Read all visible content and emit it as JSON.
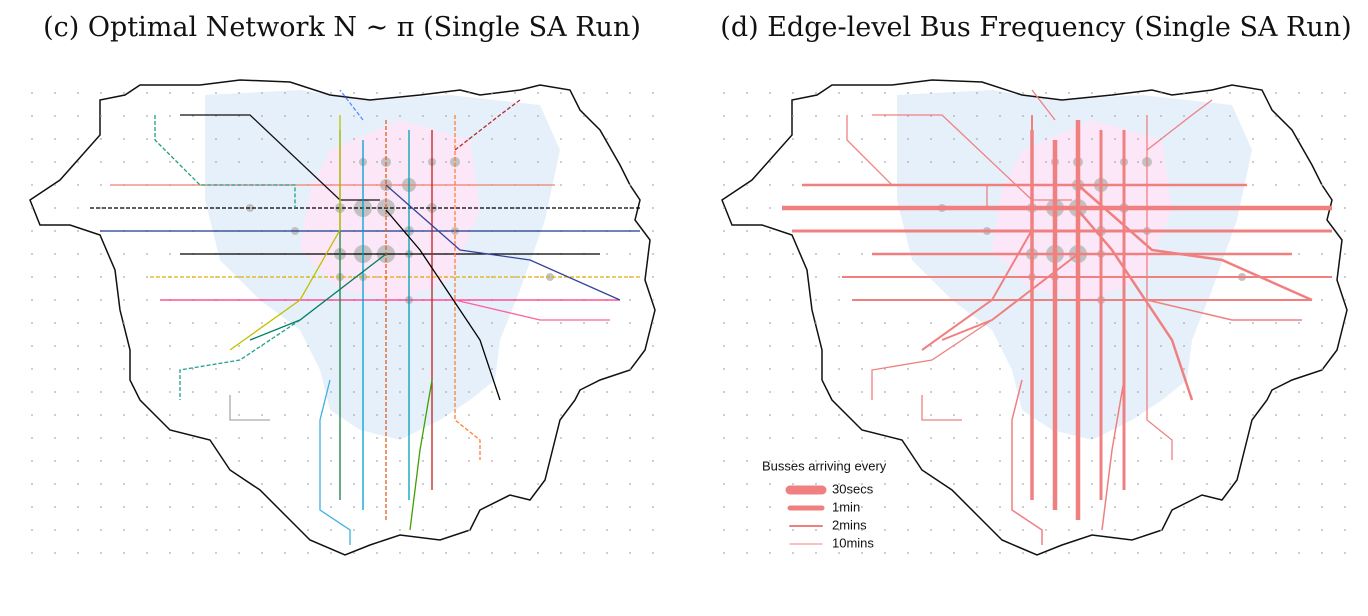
{
  "panels": [
    {
      "title": "(c) Optimal Network N ∼ π (Single SA Run)"
    },
    {
      "title": "(d) Edge-level Bus Frequency (Single SA Run)"
    }
  ],
  "legend": {
    "title": "Busses arriving every",
    "items": [
      "30secs",
      "1min",
      "2mins",
      "10mins"
    ]
  }
}
